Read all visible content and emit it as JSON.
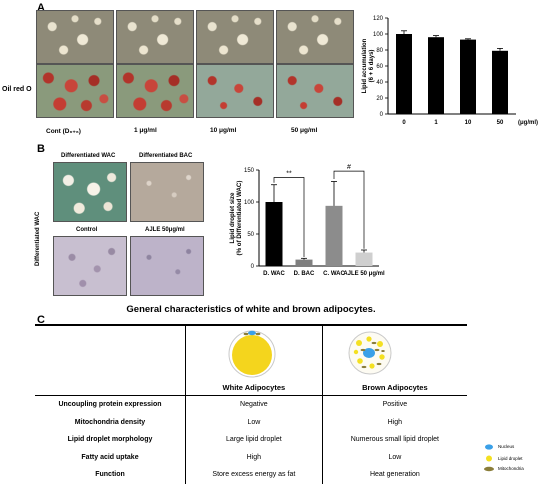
{
  "panel_a": {
    "letter": "A",
    "row_label": "Oil red O",
    "conditions": [
      "Cont (D₆₊₆)",
      "1 μg/ml",
      "10 μg/ml",
      "50 μg/ml"
    ]
  },
  "panel_b": {
    "letter": "B",
    "image_labels": [
      "Differentiated WAC",
      "Differentiated BAC",
      "Control",
      "AJLE 50μg/ml"
    ],
    "side_label": "Differentiated WAC"
  },
  "panel_c": {
    "letter": "C",
    "title": "General characteristics of white and brown adipocytes.",
    "columns": [
      "White Adipocytes",
      "Brown Adipocytes"
    ],
    "rows": [
      {
        "label": "Uncoupling protein expression",
        "white": "Negative",
        "brown": "Positive"
      },
      {
        "label": "Mitochondria density",
        "white": "Low",
        "brown": "High"
      },
      {
        "label": "Lipid droplet morphology",
        "white": "Large lipid droplet",
        "brown": "Numerous small lipid droplet"
      },
      {
        "label": "Fatty acid uptake",
        "white": "High",
        "brown": "Low"
      },
      {
        "label": "Function",
        "white": "Store excess energy as fat",
        "brown": "Heat generation"
      }
    ],
    "legend": [
      "Nucleus",
      "Lipid droplet",
      "Mitochondria"
    ],
    "colors": {
      "nucleus": "#3aa0e8",
      "lipid": "#f4e021",
      "mitochondria": "#8a7d3a"
    }
  },
  "chart_data": [
    {
      "type": "bar",
      "categories": [
        "0",
        "1",
        "10",
        "50"
      ],
      "values": [
        100,
        96,
        93,
        79
      ],
      "errors": [
        4,
        2,
        1,
        3
      ],
      "ylabel": "Lipid accumulation (6 + 6 days) (% of control)",
      "xunit": "(μg/ml)",
      "ylim": [
        0,
        120
      ],
      "yticks": [
        "0",
        "20",
        "40",
        "60",
        "80",
        "100",
        "120"
      ],
      "colors": [
        "#000000",
        "#000000",
        "#000000",
        "#000000"
      ]
    },
    {
      "type": "bar",
      "categories": [
        "D. WAC",
        "D. BAC",
        "C. WAC",
        "AJLE 50 μg/ml"
      ],
      "values": [
        100,
        10,
        94,
        21
      ],
      "errors": [
        27,
        2,
        38,
        4
      ],
      "ylabel": "Lipid droplet size (% of Differentiated WAC)",
      "ylim": [
        0,
        150
      ],
      "yticks": [
        "0",
        "50",
        "100",
        "150"
      ],
      "significance": [
        "**",
        "#"
      ],
      "colors": [
        "#000000",
        "#7f7f7f",
        "#8c8c8c",
        "#cfcfcf"
      ]
    }
  ]
}
